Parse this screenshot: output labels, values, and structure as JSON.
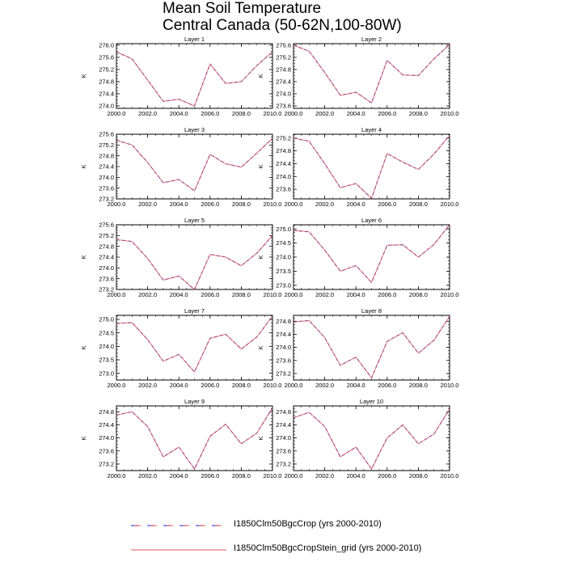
{
  "title": {
    "line1": "Mean Soil Temperature",
    "line2": "Central Canada (50-62N,100-80W)"
  },
  "colors": {
    "series_dashed": "#2020e0",
    "series_dashed_alt": "#e02020",
    "series_solid": "#e05050",
    "overlap": "#8a2be2"
  },
  "legend": [
    {
      "label": "I1850Clm50BgcCrop (yrs 2000-2010)",
      "style": "dashed"
    },
    {
      "label": "I1850Clm50BgcCropStein_grid (yrs 2000-2010)",
      "style": "solid"
    }
  ],
  "chart_data": [
    {
      "type": "line",
      "title": "Layer 1",
      "ylabel": "K",
      "xlim": [
        2000,
        2010
      ],
      "x_ticks": [
        "2000.0",
        "2002.0",
        "2004.0",
        "2006.0",
        "2008.0",
        "2010.0"
      ],
      "y_ticks": [
        "274.0",
        "274.4",
        "274.8",
        "275.2",
        "275.6",
        "276.0"
      ],
      "ylim": [
        273.92,
        276.05
      ],
      "x": [
        2000,
        2001,
        2002,
        2003,
        2004,
        2005,
        2006,
        2007,
        2008,
        2009,
        2010
      ],
      "series": [
        {
          "name": "I1850Clm50BgcCrop (yrs 2000-2010)",
          "values": [
            275.78,
            275.55,
            274.85,
            274.15,
            274.22,
            274.0,
            275.38,
            274.74,
            274.8,
            275.33,
            275.78
          ]
        },
        {
          "name": "I1850Clm50BgcCropStein_grid (yrs 2000-2010)",
          "values": [
            275.78,
            275.55,
            274.85,
            274.15,
            274.22,
            274.0,
            275.38,
            274.74,
            274.8,
            275.33,
            275.78
          ]
        }
      ]
    },
    {
      "type": "line",
      "title": "Layer 2",
      "ylabel": "K",
      "xlim": [
        2000,
        2010
      ],
      "x_ticks": [
        "2000.0",
        "2002.0",
        "2004.0",
        "2006.0",
        "2008.0",
        "2010.0"
      ],
      "y_ticks": [
        "273.6",
        "274.0",
        "274.4",
        "274.8",
        "275.2",
        "275.6"
      ],
      "ylim": [
        273.52,
        275.65
      ],
      "x": [
        2000,
        2001,
        2002,
        2003,
        2004,
        2005,
        2006,
        2007,
        2008,
        2009,
        2010
      ],
      "series": [
        {
          "name": "I1850Clm50BgcCrop (yrs 2000-2010)",
          "values": [
            275.6,
            275.4,
            274.7,
            273.95,
            274.05,
            273.7,
            275.1,
            274.62,
            274.6,
            275.15,
            275.62
          ]
        },
        {
          "name": "I1850Clm50BgcCropStein_grid (yrs 2000-2010)",
          "values": [
            275.6,
            275.4,
            274.7,
            273.95,
            274.05,
            273.7,
            275.1,
            274.62,
            274.6,
            275.15,
            275.62
          ]
        }
      ]
    },
    {
      "type": "line",
      "title": "Layer 3",
      "ylabel": "K",
      "xlim": [
        2000,
        2010
      ],
      "x_ticks": [
        "2000.0",
        "2002.0",
        "2004.0",
        "2006.0",
        "2008.0",
        "2010.0"
      ],
      "y_ticks": [
        "273.2",
        "273.6",
        "274.0",
        "274.4",
        "274.8",
        "275.2",
        "275.6"
      ],
      "ylim": [
        273.2,
        275.6
      ],
      "x": [
        2000,
        2001,
        2002,
        2003,
        2004,
        2005,
        2006,
        2007,
        2008,
        2009,
        2010
      ],
      "series": [
        {
          "name": "I1850Clm50BgcCrop (yrs 2000-2010)",
          "values": [
            275.38,
            275.2,
            274.55,
            273.8,
            273.92,
            273.5,
            274.85,
            274.5,
            274.38,
            274.9,
            275.45
          ]
        },
        {
          "name": "I1850Clm50BgcCropStein_grid (yrs 2000-2010)",
          "values": [
            275.38,
            275.2,
            274.55,
            273.8,
            273.92,
            273.5,
            274.85,
            274.5,
            274.38,
            274.9,
            275.45
          ]
        }
      ]
    },
    {
      "type": "line",
      "title": "Layer 4",
      "ylabel": "K",
      "xlim": [
        2000,
        2010
      ],
      "x_ticks": [
        "2000.0",
        "2002.0",
        "2004.0",
        "2006.0",
        "2008.0",
        "2010.0"
      ],
      "y_ticks": [
        "273.6",
        "274.0",
        "274.4",
        "274.8",
        "275.2"
      ],
      "ylim": [
        273.3,
        275.32
      ],
      "x": [
        2000,
        2001,
        2002,
        2003,
        2004,
        2005,
        2006,
        2007,
        2008,
        2009,
        2010
      ],
      "series": [
        {
          "name": "I1850Clm50BgcCrop (yrs 2000-2010)",
          "values": [
            275.2,
            275.1,
            274.4,
            273.65,
            273.78,
            273.32,
            274.72,
            274.45,
            274.22,
            274.7,
            275.28
          ]
        },
        {
          "name": "I1850Clm50BgcCropStein_grid (yrs 2000-2010)",
          "values": [
            275.2,
            275.1,
            274.4,
            273.65,
            273.78,
            273.32,
            274.72,
            274.45,
            274.22,
            274.7,
            275.28
          ]
        }
      ]
    },
    {
      "type": "line",
      "title": "Layer 5",
      "ylabel": "K",
      "xlim": [
        2000,
        2010
      ],
      "x_ticks": [
        "2000.0",
        "2002.0",
        "2004.0",
        "2006.0",
        "2008.0",
        "2010.0"
      ],
      "y_ticks": [
        "273.2",
        "273.6",
        "274.0",
        "274.4",
        "274.8",
        "275.2",
        "275.6"
      ],
      "ylim": [
        273.2,
        275.6
      ],
      "x": [
        2000,
        2001,
        2002,
        2003,
        2004,
        2005,
        2006,
        2007,
        2008,
        2009,
        2010
      ],
      "series": [
        {
          "name": "I1850Clm50BgcCrop (yrs 2000-2010)",
          "values": [
            275.05,
            274.98,
            274.35,
            273.55,
            273.7,
            273.2,
            274.5,
            274.4,
            274.08,
            274.55,
            275.2
          ]
        },
        {
          "name": "I1850Clm50BgcCropStein_grid (yrs 2000-2010)",
          "values": [
            275.05,
            274.98,
            274.35,
            273.55,
            273.7,
            273.2,
            274.5,
            274.4,
            274.08,
            274.55,
            275.2
          ]
        }
      ]
    },
    {
      "type": "line",
      "title": "Layer 6",
      "ylabel": "K",
      "xlim": [
        2000,
        2010
      ],
      "x_ticks": [
        "2000.0",
        "2002.0",
        "2004.0",
        "2006.0",
        "2008.0",
        "2010.0"
      ],
      "y_ticks": [
        "273.0",
        "273.5",
        "274.0",
        "274.5",
        "275.0"
      ],
      "ylim": [
        272.85,
        275.15
      ],
      "x": [
        2000,
        2001,
        2002,
        2003,
        2004,
        2005,
        2006,
        2007,
        2008,
        2009,
        2010
      ],
      "series": [
        {
          "name": "I1850Clm50BgcCrop (yrs 2000-2010)",
          "values": [
            274.95,
            274.9,
            274.25,
            273.5,
            273.7,
            273.1,
            274.42,
            274.44,
            274.0,
            274.45,
            275.15
          ]
        },
        {
          "name": "I1850Clm50BgcCropStein_grid (yrs 2000-2010)",
          "values": [
            274.95,
            274.9,
            274.25,
            273.5,
            273.7,
            273.1,
            274.42,
            274.44,
            274.0,
            274.45,
            275.15
          ]
        }
      ]
    },
    {
      "type": "line",
      "title": "Layer 7",
      "ylabel": "K",
      "xlim": [
        2000,
        2010
      ],
      "x_ticks": [
        "2000.0",
        "2002.0",
        "2004.0",
        "2006.0",
        "2008.0",
        "2010.0"
      ],
      "y_ticks": [
        "273.0",
        "273.5",
        "274.0",
        "274.5",
        "275.0"
      ],
      "ylim": [
        272.75,
        275.15
      ],
      "x": [
        2000,
        2001,
        2002,
        2003,
        2004,
        2005,
        2006,
        2007,
        2008,
        2009,
        2010
      ],
      "series": [
        {
          "name": "I1850Clm50BgcCrop (yrs 2000-2010)",
          "values": [
            274.85,
            274.88,
            274.25,
            273.45,
            273.7,
            273.05,
            274.3,
            274.45,
            273.9,
            274.35,
            275.12
          ]
        },
        {
          "name": "I1850Clm50BgcCropStein_grid (yrs 2000-2010)",
          "values": [
            274.85,
            274.88,
            274.25,
            273.45,
            273.7,
            273.05,
            274.3,
            274.45,
            273.9,
            274.35,
            275.12
          ]
        }
      ]
    },
    {
      "type": "line",
      "title": "Layer 8",
      "ylabel": "K",
      "xlim": [
        2000,
        2010
      ],
      "x_ticks": [
        "2000.0",
        "2002.0",
        "2004.0",
        "2006.0",
        "2008.0",
        "2010.0"
      ],
      "y_ticks": [
        "273.2",
        "273.6",
        "274.0",
        "274.4",
        "274.8"
      ],
      "ylim": [
        273.0,
        274.98
      ],
      "x": [
        2000,
        2001,
        2002,
        2003,
        2004,
        2005,
        2006,
        2007,
        2008,
        2009,
        2010
      ],
      "series": [
        {
          "name": "I1850Clm50BgcCrop (yrs 2000-2010)",
          "values": [
            274.78,
            274.82,
            274.3,
            273.45,
            273.7,
            273.07,
            274.18,
            274.45,
            273.82,
            274.22,
            274.95
          ]
        },
        {
          "name": "I1850Clm50BgcCropStein_grid (yrs 2000-2010)",
          "values": [
            274.78,
            274.82,
            274.3,
            273.45,
            273.7,
            273.07,
            274.18,
            274.45,
            273.82,
            274.22,
            274.95
          ]
        }
      ]
    },
    {
      "type": "line",
      "title": "Layer 9",
      "ylabel": "K",
      "xlim": [
        2000,
        2010
      ],
      "x_ticks": [
        "2000.0",
        "2002.0",
        "2004.0",
        "2006.0",
        "2008.0",
        "2010.0"
      ],
      "y_ticks": [
        "273.2",
        "273.6",
        "274.0",
        "274.4",
        "274.8"
      ],
      "ylim": [
        273.0,
        274.98
      ],
      "x": [
        2000,
        2001,
        2002,
        2003,
        2004,
        2005,
        2006,
        2007,
        2008,
        2009,
        2010
      ],
      "series": [
        {
          "name": "I1850Clm50BgcCrop (yrs 2000-2010)",
          "values": [
            274.7,
            274.8,
            274.35,
            273.42,
            273.72,
            273.05,
            274.05,
            274.42,
            273.82,
            274.15,
            274.92
          ]
        },
        {
          "name": "I1850Clm50BgcCropStein_grid (yrs 2000-2010)",
          "values": [
            274.7,
            274.8,
            274.35,
            273.42,
            273.72,
            273.05,
            274.05,
            274.42,
            273.82,
            274.15,
            274.92
          ]
        }
      ]
    },
    {
      "type": "line",
      "title": "Layer 10",
      "ylabel": "K",
      "xlim": [
        2000,
        2010
      ],
      "x_ticks": [
        "2000.0",
        "2002.0",
        "2004.0",
        "2006.0",
        "2008.0",
        "2010.0"
      ],
      "y_ticks": [
        "273.2",
        "273.6",
        "274.0",
        "274.4",
        "274.8"
      ],
      "ylim": [
        273.0,
        274.98
      ],
      "x": [
        2000,
        2001,
        2002,
        2003,
        2004,
        2005,
        2006,
        2007,
        2008,
        2009,
        2010
      ],
      "series": [
        {
          "name": "I1850Clm50BgcCrop (yrs 2000-2010)",
          "values": [
            274.62,
            274.78,
            274.35,
            273.42,
            273.72,
            273.05,
            274.0,
            274.4,
            273.82,
            274.12,
            274.88
          ]
        },
        {
          "name": "I1850Clm50BgcCropStein_grid (yrs 2000-2010)",
          "values": [
            274.62,
            274.78,
            274.35,
            273.42,
            273.72,
            273.05,
            274.0,
            274.4,
            273.82,
            274.12,
            274.88
          ]
        }
      ]
    }
  ]
}
